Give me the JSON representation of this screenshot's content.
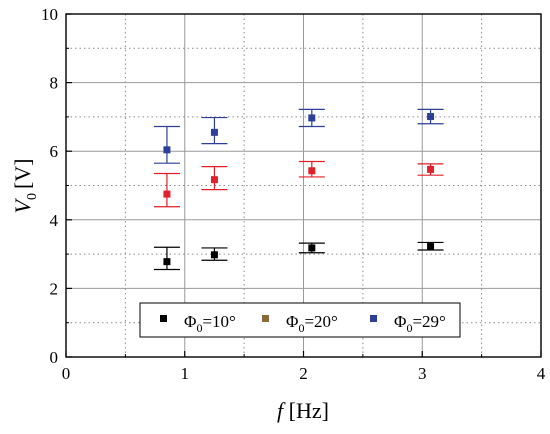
{
  "chart_data": {
    "type": "scatter",
    "xlabel": {
      "var": "f",
      "unit": "[Hz]"
    },
    "ylabel": {
      "var": "V",
      "sub": "0",
      "unit": "[V]"
    },
    "xlim": [
      0,
      4
    ],
    "ylim": [
      0,
      10
    ],
    "xticks": [
      0,
      1,
      2,
      3,
      4
    ],
    "yticks": [
      0,
      2,
      4,
      6,
      8,
      10
    ],
    "grid": true,
    "minor_grid": true,
    "legend_position": "bottom-center",
    "series": [
      {
        "name": "Φ0=10°",
        "label": {
          "sym": "Φ",
          "sub": "0",
          "rest": "=10°"
        },
        "marker_color": "#000000",
        "legend_color": "#000000",
        "errbar_color": "#000000",
        "points": [
          {
            "x": 0.85,
            "y": 2.78,
            "lo": 2.55,
            "hi": 3.2
          },
          {
            "x": 1.25,
            "y": 2.98,
            "lo": 2.82,
            "hi": 3.18
          },
          {
            "x": 2.07,
            "y": 3.18,
            "lo": 3.04,
            "hi": 3.32
          },
          {
            "x": 3.07,
            "y": 3.22,
            "lo": 3.12,
            "hi": 3.34
          }
        ]
      },
      {
        "name": "Φ0=20°",
        "label": {
          "sym": "Φ",
          "sub": "0",
          "rest": "=20°"
        },
        "marker_color": "#e0202a",
        "legend_color": "#8a6a3a",
        "errbar_color": "#e0202a",
        "points": [
          {
            "x": 0.85,
            "y": 4.75,
            "lo": 4.38,
            "hi": 5.35
          },
          {
            "x": 1.25,
            "y": 5.17,
            "lo": 4.88,
            "hi": 5.55
          },
          {
            "x": 2.07,
            "y": 5.43,
            "lo": 5.25,
            "hi": 5.7
          },
          {
            "x": 3.07,
            "y": 5.47,
            "lo": 5.3,
            "hi": 5.63
          }
        ]
      },
      {
        "name": "Φ0=29°",
        "label": {
          "sym": "Φ",
          "sub": "0",
          "rest": "=29°"
        },
        "marker_color": "#2e3f97",
        "legend_color": "#2e3f97",
        "errbar_color": "#2e3f97",
        "points": [
          {
            "x": 0.85,
            "y": 6.04,
            "lo": 5.65,
            "hi": 6.72
          },
          {
            "x": 1.25,
            "y": 6.55,
            "lo": 6.22,
            "hi": 6.98
          },
          {
            "x": 2.07,
            "y": 6.97,
            "lo": 6.72,
            "hi": 7.22
          },
          {
            "x": 3.07,
            "y": 7.01,
            "lo": 6.8,
            "hi": 7.22
          }
        ]
      }
    ]
  }
}
